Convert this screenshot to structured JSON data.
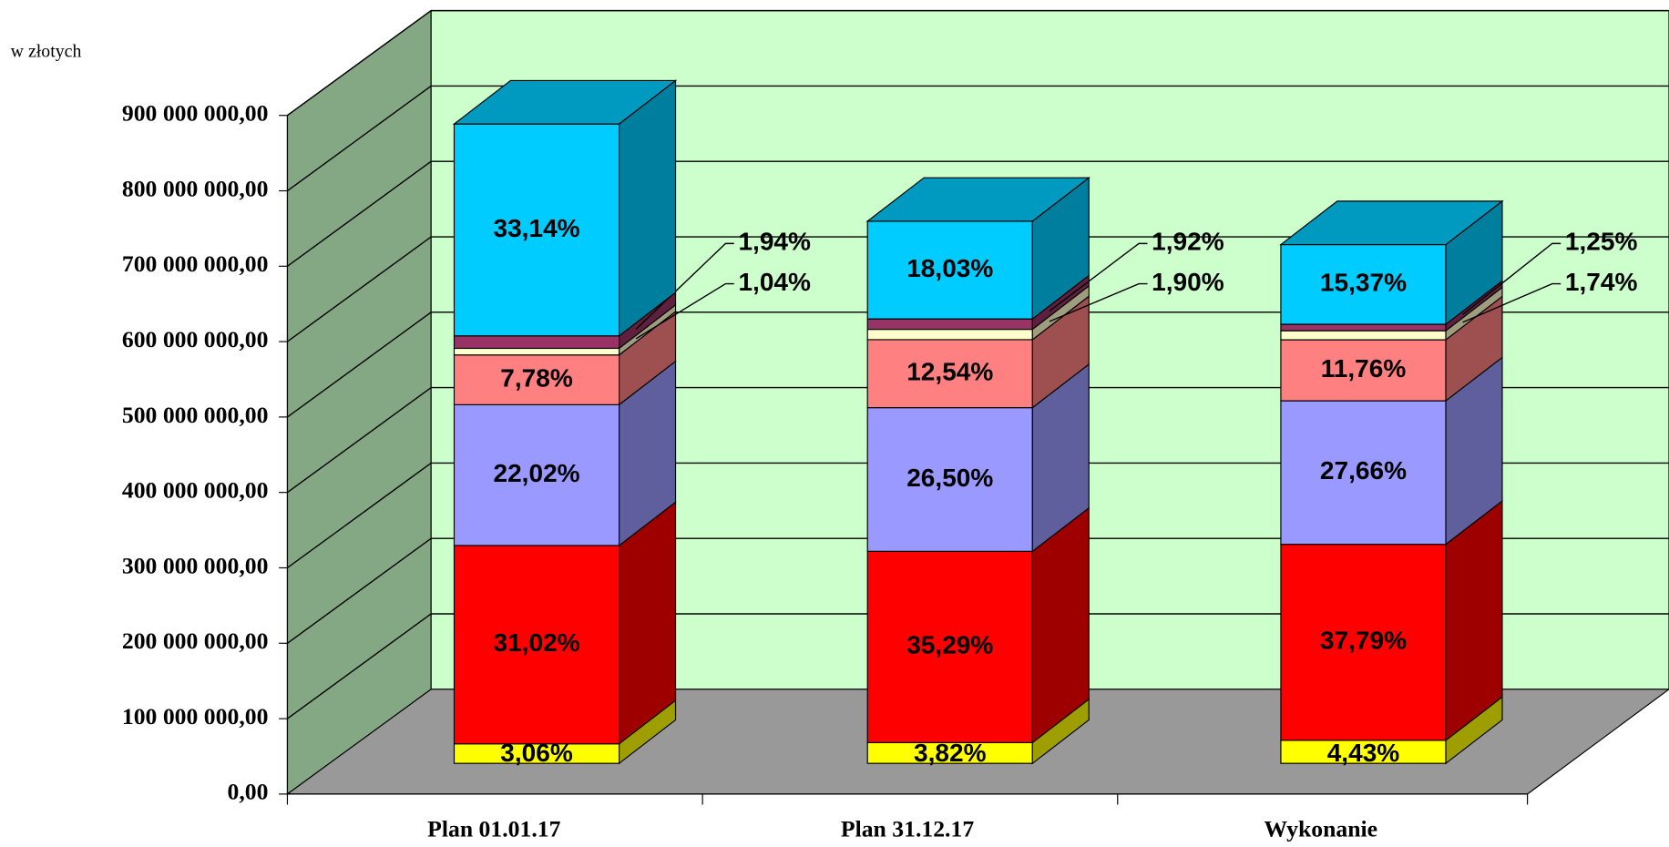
{
  "chart_data": {
    "type": "bar3d_stacked",
    "y_label": "w złotych",
    "categories": [
      "Plan 01.01.17",
      "Plan 31.12.17",
      "Wykonanie"
    ],
    "ylim": [
      0,
      900000000
    ],
    "yticks": [
      {
        "value": 0,
        "label": "0,00"
      },
      {
        "value": 100000000,
        "label": "100 000 000,00"
      },
      {
        "value": 200000000,
        "label": "200 000 000,00"
      },
      {
        "value": 300000000,
        "label": "300 000 000,00"
      },
      {
        "value": 400000000,
        "label": "400 000 000,00"
      },
      {
        "value": 500000000,
        "label": "500 000 000,00"
      },
      {
        "value": 600000000,
        "label": "600 000 000,00"
      },
      {
        "value": 700000000,
        "label": "700 000 000,00"
      },
      {
        "value": 800000000,
        "label": "800 000 000,00"
      },
      {
        "value": 900000000,
        "label": "900 000 000,00"
      }
    ],
    "grid": true,
    "series": [
      {
        "color": "#ffff00",
        "values": [
          25900000,
          27500000,
          30500000
        ],
        "share_labels": [
          "3,06%",
          "3,82%",
          "4,43%"
        ]
      },
      {
        "color": "#ff0000",
        "values": [
          263000000,
          253700000,
          260000000
        ],
        "share_labels": [
          "31,02%",
          "35,29%",
          "37,79%"
        ]
      },
      {
        "color": "#9999ff",
        "values": [
          186700000,
          190500000,
          190300000
        ],
        "share_labels": [
          "22,02%",
          "26,50%",
          "27,66%"
        ]
      },
      {
        "color": "#ff8080",
        "values": [
          66000000,
          90200000,
          80900000
        ],
        "share_labels": [
          "7,78%",
          "12,54%",
          "11,76%"
        ]
      },
      {
        "color": "#ffffcc",
        "values": [
          8800000,
          13700000,
          12000000
        ],
        "share_labels": [
          "1,04%",
          "1,90%",
          "1,74%"
        ],
        "callout": "lower"
      },
      {
        "color": "#993366",
        "values": [
          16500000,
          13800000,
          8600000
        ],
        "share_labels": [
          "1,94%",
          "1,92%",
          "1,25%"
        ],
        "callout": "upper"
      },
      {
        "color": "#00ccff",
        "values": [
          281000000,
          129600000,
          105700000
        ],
        "share_labels": [
          "33,14%",
          "18,03%",
          "15,37%"
        ]
      }
    ]
  }
}
